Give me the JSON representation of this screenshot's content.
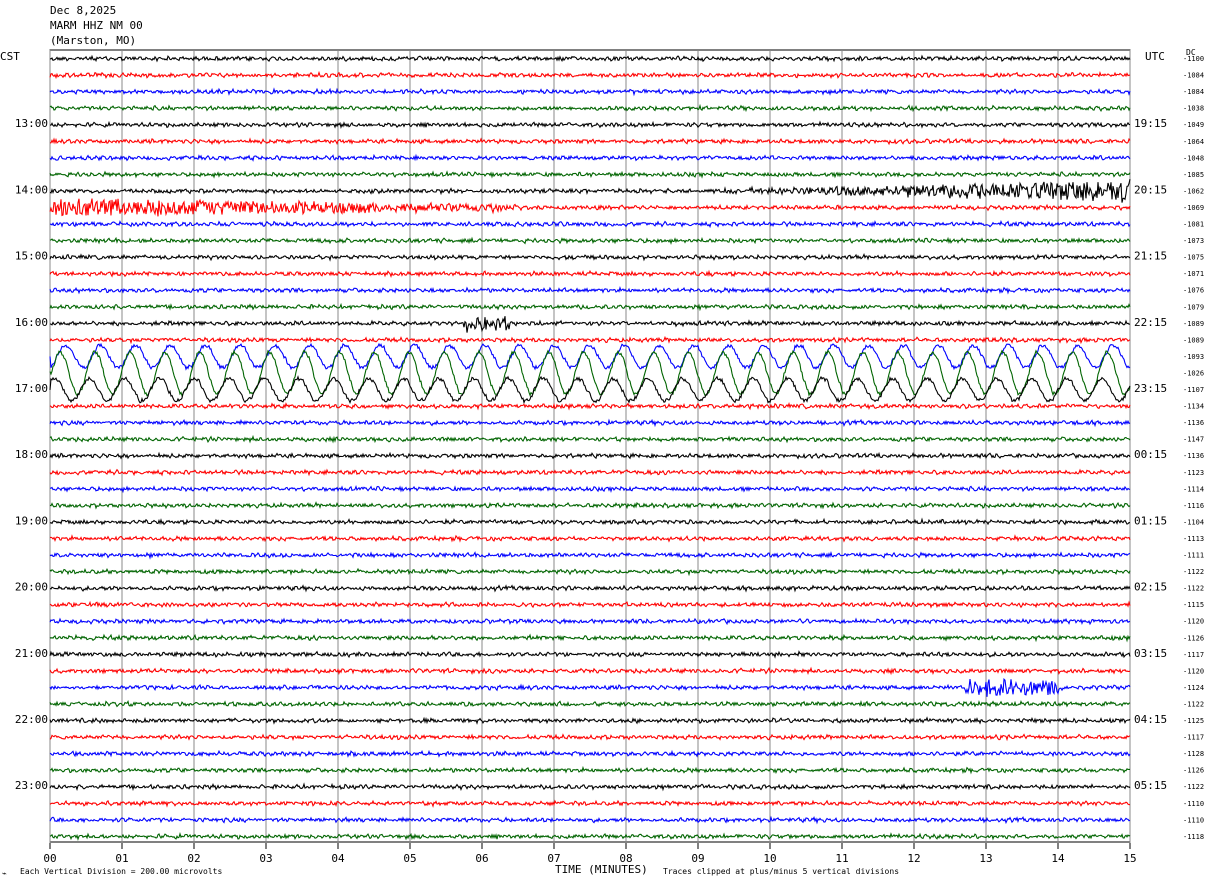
{
  "header": {
    "date": "Dec 8,2025",
    "station": "MARM HHZ NM 00",
    "location": "(Marston, MO)"
  },
  "left_tz": "CST",
  "right_tz": "UTC",
  "dc_label": "DC",
  "footer": {
    "scale_note": "Each Vertical Division =  200.00 microvolts",
    "xaxis_title": "TIME (MINUTES)",
    "clip_note": "Traces clipped at plus/minus 5 vertical divisions"
  },
  "colors": {
    "trace_cycle": [
      "#000000",
      "#ff0000",
      "#0000ff",
      "#006400"
    ],
    "grid": "#888888"
  },
  "chart_data": {
    "type": "line",
    "title": "",
    "xlabel": "TIME (MINUTES)",
    "x_ticks": [
      "00",
      "01",
      "02",
      "03",
      "04",
      "05",
      "06",
      "07",
      "08",
      "09",
      "10",
      "11",
      "12",
      "13",
      "14",
      "15"
    ],
    "xlim": [
      0,
      15
    ],
    "left_hour_labels": [
      "13:00",
      "14:00",
      "15:00",
      "16:00",
      "17:00",
      "18:00",
      "19:00",
      "20:00",
      "21:00",
      "22:00",
      "23:00"
    ],
    "right_hour_labels": [
      "19:15",
      "20:15",
      "21:15",
      "22:15",
      "23:15",
      "00:15",
      "01:15",
      "02:15",
      "03:15",
      "04:15",
      "05:15"
    ],
    "dc_offsets": [
      -1100,
      -1084,
      -1084,
      -1038,
      -1049,
      -1064,
      -1048,
      -1085,
      -1062,
      -1069,
      -1081,
      -1073,
      -1075,
      -1071,
      -1076,
      -1079,
      -1089,
      -1089,
      -1093,
      -1026,
      -1107,
      -1134,
      -1136,
      -1147,
      -1136,
      -1123,
      -1114,
      -1116,
      -1104,
      -1113,
      -1111,
      -1122,
      -1122,
      -1115,
      -1120,
      -1126,
      -1117,
      -1120,
      -1124,
      -1122,
      -1125,
      -1117,
      -1128,
      -1126,
      -1122,
      -1110,
      -1110,
      -1118
    ],
    "trace_count": 48,
    "minutes_per_trace": 15
  }
}
